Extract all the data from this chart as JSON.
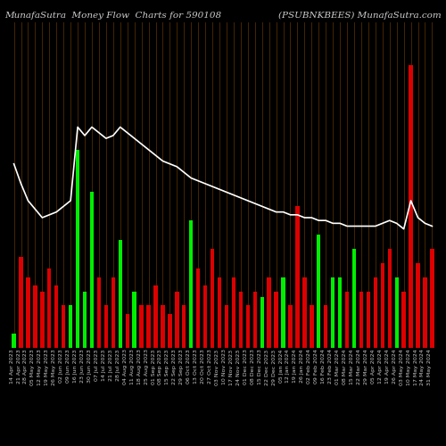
{
  "title_left": "MunafaSutra  Money Flow  Charts for 590108",
  "title_right": "(PSUBNKBEES) MunafaSutra.com",
  "background_color": "#000000",
  "bar_colors_pattern": [
    "green",
    "red",
    "red",
    "red",
    "red",
    "red",
    "red",
    "red",
    "green",
    "green",
    "green",
    "green",
    "red",
    "red",
    "red",
    "green",
    "red",
    "green",
    "red",
    "red",
    "red",
    "red",
    "red",
    "red",
    "red",
    "green",
    "red",
    "red",
    "red",
    "red",
    "red",
    "red",
    "red",
    "red",
    "red",
    "green",
    "red",
    "red",
    "green",
    "red",
    "red",
    "red",
    "red",
    "green",
    "red",
    "green",
    "green",
    "red",
    "green",
    "red",
    "red",
    "red",
    "red",
    "red",
    "green",
    "red",
    "red",
    "red",
    "red",
    "red"
  ],
  "bar_heights": [
    0.5,
    3.2,
    2.5,
    2.2,
    2.0,
    2.8,
    2.2,
    1.5,
    1.5,
    7.0,
    2.0,
    5.5,
    2.5,
    1.5,
    2.5,
    3.8,
    1.2,
    2.0,
    1.5,
    1.5,
    2.2,
    1.5,
    1.2,
    2.0,
    1.5,
    4.5,
    2.8,
    2.2,
    3.5,
    2.5,
    1.5,
    2.5,
    2.0,
    1.5,
    2.0,
    1.8,
    2.5,
    2.0,
    2.5,
    1.5,
    5.0,
    2.5,
    1.5,
    4.0,
    1.5,
    2.5,
    2.5,
    2.0,
    3.5,
    2.0,
    2.0,
    2.5,
    3.0,
    3.5,
    2.5,
    2.0,
    10.0,
    3.0,
    2.5,
    3.5
  ],
  "line_values": [
    6.5,
    5.8,
    5.2,
    4.9,
    4.6,
    4.7,
    4.8,
    5.0,
    5.2,
    7.8,
    7.5,
    7.8,
    7.6,
    7.4,
    7.5,
    7.8,
    7.6,
    7.4,
    7.2,
    7.0,
    6.8,
    6.6,
    6.5,
    6.4,
    6.2,
    6.0,
    5.9,
    5.8,
    5.7,
    5.6,
    5.5,
    5.4,
    5.3,
    5.2,
    5.1,
    5.0,
    4.9,
    4.8,
    4.8,
    4.7,
    4.7,
    4.6,
    4.6,
    4.5,
    4.5,
    4.4,
    4.4,
    4.3,
    4.3,
    4.3,
    4.3,
    4.3,
    4.4,
    4.5,
    4.4,
    4.2,
    5.2,
    4.6,
    4.4,
    4.3
  ],
  "labels": [
    "14 Apr 2023",
    "21 Apr 2023",
    "28 Apr 2023",
    "05 May 2023",
    "12 May 2023",
    "19 May 2023",
    "26 May 2023",
    "02 Jun 2023",
    "09 Jun 2023",
    "16 Jun 2023",
    "23 Jun 2023",
    "30 Jun 2023",
    "07 Jul 2023",
    "14 Jul 2023",
    "21 Jul 2023",
    "28 Jul 2023",
    "04 Aug 2023",
    "11 Aug 2023",
    "18 Aug 2023",
    "25 Aug 2023",
    "01 Sep 2023",
    "08 Sep 2023",
    "15 Sep 2023",
    "22 Sep 2023",
    "29 Sep 2023",
    "06 Oct 2023",
    "13 Oct 2023",
    "20 Oct 2023",
    "27 Oct 2023",
    "03 Nov 2023",
    "10 Nov 2023",
    "17 Nov 2023",
    "24 Nov 2023",
    "01 Dec 2023",
    "08 Dec 2023",
    "15 Dec 2023",
    "22 Dec 2023",
    "29 Dec 2023",
    "05 Jan 2024",
    "12 Jan 2024",
    "19 Jan 2024",
    "26 Jan 2024",
    "02 Feb 2024",
    "09 Feb 2024",
    "16 Feb 2024",
    "23 Feb 2024",
    "01 Mar 2024",
    "08 Mar 2024",
    "15 Mar 2024",
    "22 Mar 2024",
    "29 Mar 2024",
    "05 Apr 2024",
    "12 Apr 2024",
    "19 Apr 2024",
    "26 Apr 2024",
    "03 May 2024",
    "10 May 2024",
    "17 May 2024",
    "24 May 2024",
    "31 May 2024"
  ],
  "line_color": "#ffffff",
  "text_color": "#cccccc",
  "title_fontsize": 7.5,
  "label_fontsize": 4.5,
  "ylim": [
    0,
    11.5
  ],
  "green_color": "#00ee00",
  "red_color": "#dd0000",
  "orange_line_color": "#cc6600"
}
